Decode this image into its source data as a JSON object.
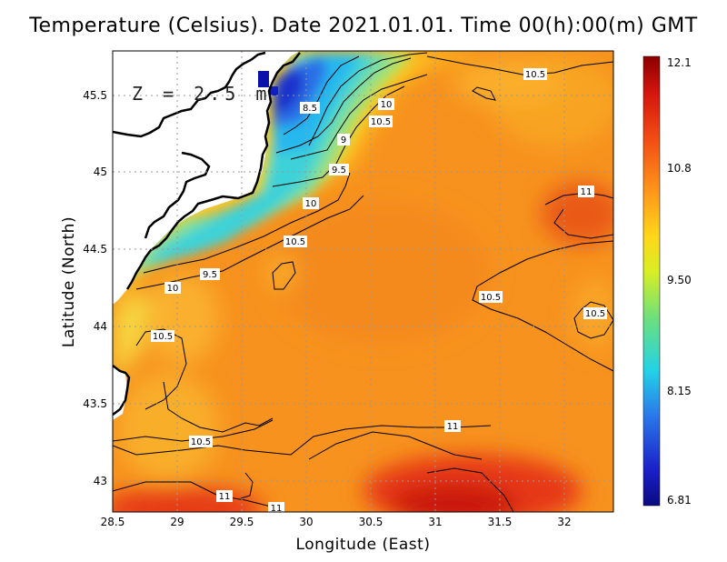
{
  "title": "Temperature (Celsius). Date 2021.01.01. Time 00(h):00(m) GMT",
  "x_axis_label": "Longitude (East)",
  "y_axis_label": "Latitude (North)",
  "depth_label": "Z = 2.5 m",
  "x_ticks": [
    "28.5",
    "29",
    "29.5",
    "30",
    "30.5",
    "31",
    "31.5",
    "32"
  ],
  "y_ticks": [
    "43",
    "43.5",
    "44",
    "44.5",
    "45",
    "45.5"
  ],
  "colorbar": {
    "max_label": "12.1",
    "min_label": "6.81",
    "tick_labels": [
      "12.1",
      "10.8",
      "9.50",
      "8.15",
      "6.81"
    ],
    "colors": [
      "#8b0000",
      "#e51e10",
      "#ff7a10",
      "#ffd21a",
      "#e6f020",
      "#7fe06a",
      "#26d0e0",
      "#2a7ae8",
      "#1a10b0",
      "#0a0a80"
    ]
  },
  "contour_labels": [
    "10.5",
    "10",
    "8.5",
    "10.5",
    "9",
    "9.5",
    "10",
    "10.5",
    "11",
    "9.5",
    "10",
    "10.5",
    "10.5",
    "10.5",
    "10.5",
    "11",
    "11",
    "11"
  ],
  "colors": {
    "warm": "#f7921e",
    "hot": "#e8381a",
    "cold": "#1d3fd6",
    "mid": "#7fe2b0",
    "land": "#ffffff"
  }
}
